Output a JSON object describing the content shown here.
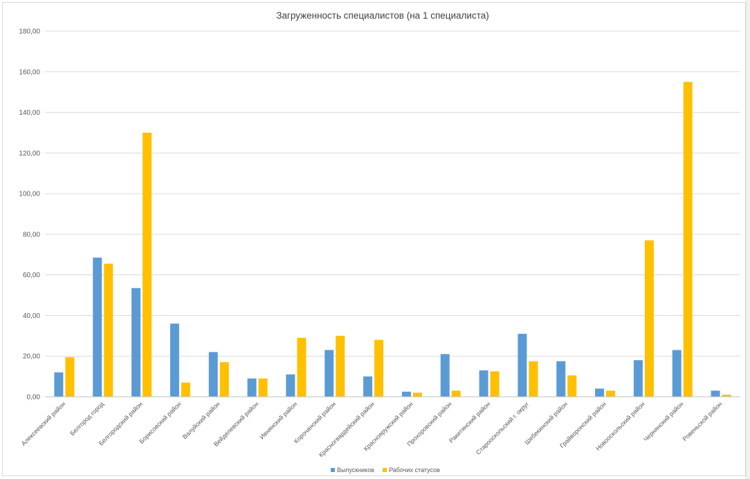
{
  "chart_data": {
    "type": "bar",
    "title": "Загруженность специалистов (на 1 специалиста)",
    "xlabel": "",
    "ylabel": "",
    "ylim": [
      0,
      180
    ],
    "yticks": [
      "0,00",
      "20,00",
      "40,00",
      "60,00",
      "80,00",
      "100,00",
      "120,00",
      "140,00",
      "160,00",
      "180,00"
    ],
    "grid": true,
    "legend_position": "bottom",
    "categories": [
      "Алексеевский район",
      "Белгород город",
      "Белгородский район",
      "Борисовский район",
      "Валуйский район",
      "Вейделевский район",
      "Ивнянский район",
      "Корочанский район",
      "Красногвардейский район",
      "Краснояружский район",
      "Прохоровский район",
      "Ракитянский район",
      "Старооскольский г. округ",
      "Шебекинский район",
      "Грайворонский район",
      "Новооскольский район",
      "Чернянский район",
      "Ровеньской район"
    ],
    "series": [
      {
        "name": "Выпускников",
        "color": "#5b9bd5",
        "values": [
          12,
          68.5,
          53.5,
          36,
          22,
          9,
          11,
          23,
          10,
          2.5,
          21,
          13,
          31,
          17.5,
          4,
          18,
          23,
          3
        ]
      },
      {
        "name": "Рабочих статусов",
        "color": "#ffc000",
        "values": [
          19.5,
          65.5,
          130,
          7,
          17,
          9,
          29,
          30,
          28,
          2,
          3,
          12.5,
          17.5,
          10.5,
          3,
          77,
          155,
          1
        ]
      }
    ]
  }
}
